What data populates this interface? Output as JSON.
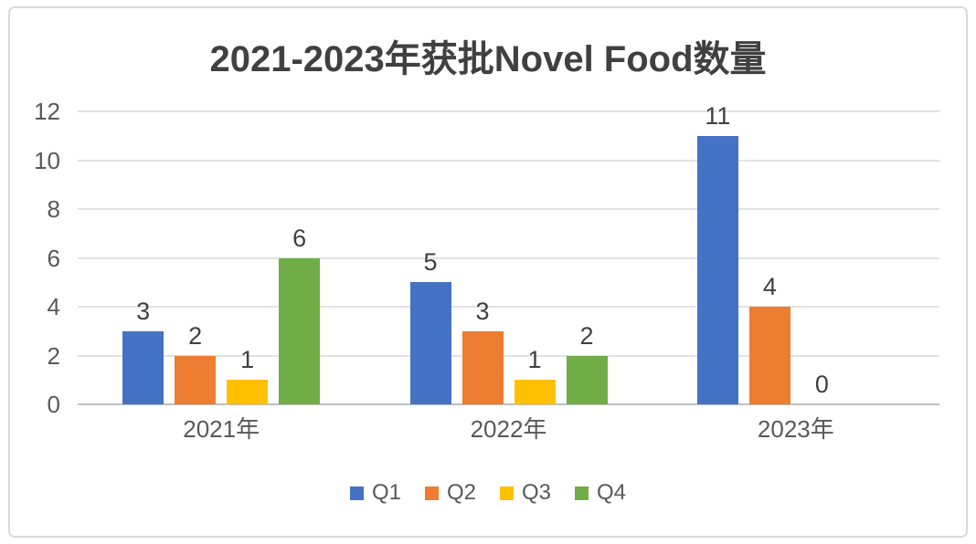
{
  "chart": {
    "title": "2021-2023年获批Novel Food数量"
  },
  "chart_data": {
    "type": "bar",
    "title": "2021-2023年获批Novel Food数量",
    "categories": [
      "2021年",
      "2022年",
      "2023年"
    ],
    "series": [
      {
        "name": "Q1",
        "color": "#4472C4",
        "values": [
          3,
          5,
          11
        ]
      },
      {
        "name": "Q2",
        "color": "#ED7D31",
        "values": [
          2,
          3,
          4
        ]
      },
      {
        "name": "Q3",
        "color": "#FFC000",
        "values": [
          1,
          1,
          0
        ]
      },
      {
        "name": "Q4",
        "color": "#70AD47",
        "values": [
          6,
          2,
          null
        ]
      }
    ],
    "data_labels": [
      [
        "3",
        "5",
        "11"
      ],
      [
        "2",
        "3",
        "4"
      ],
      [
        "1",
        "1",
        "0"
      ],
      [
        "6",
        "2",
        ""
      ]
    ],
    "yticks": [
      0,
      2,
      4,
      6,
      8,
      10,
      12
    ],
    "ylim": [
      0,
      12
    ],
    "grid": true,
    "legend_position": "bottom",
    "xlabel": "",
    "ylabel": "",
    "colors": {
      "title_text": "#404040",
      "axis_text": "#595959",
      "gridline": "#E2E2E2",
      "axis_line": "#BFBFBF",
      "frame_border": "#D9D9D9"
    }
  }
}
